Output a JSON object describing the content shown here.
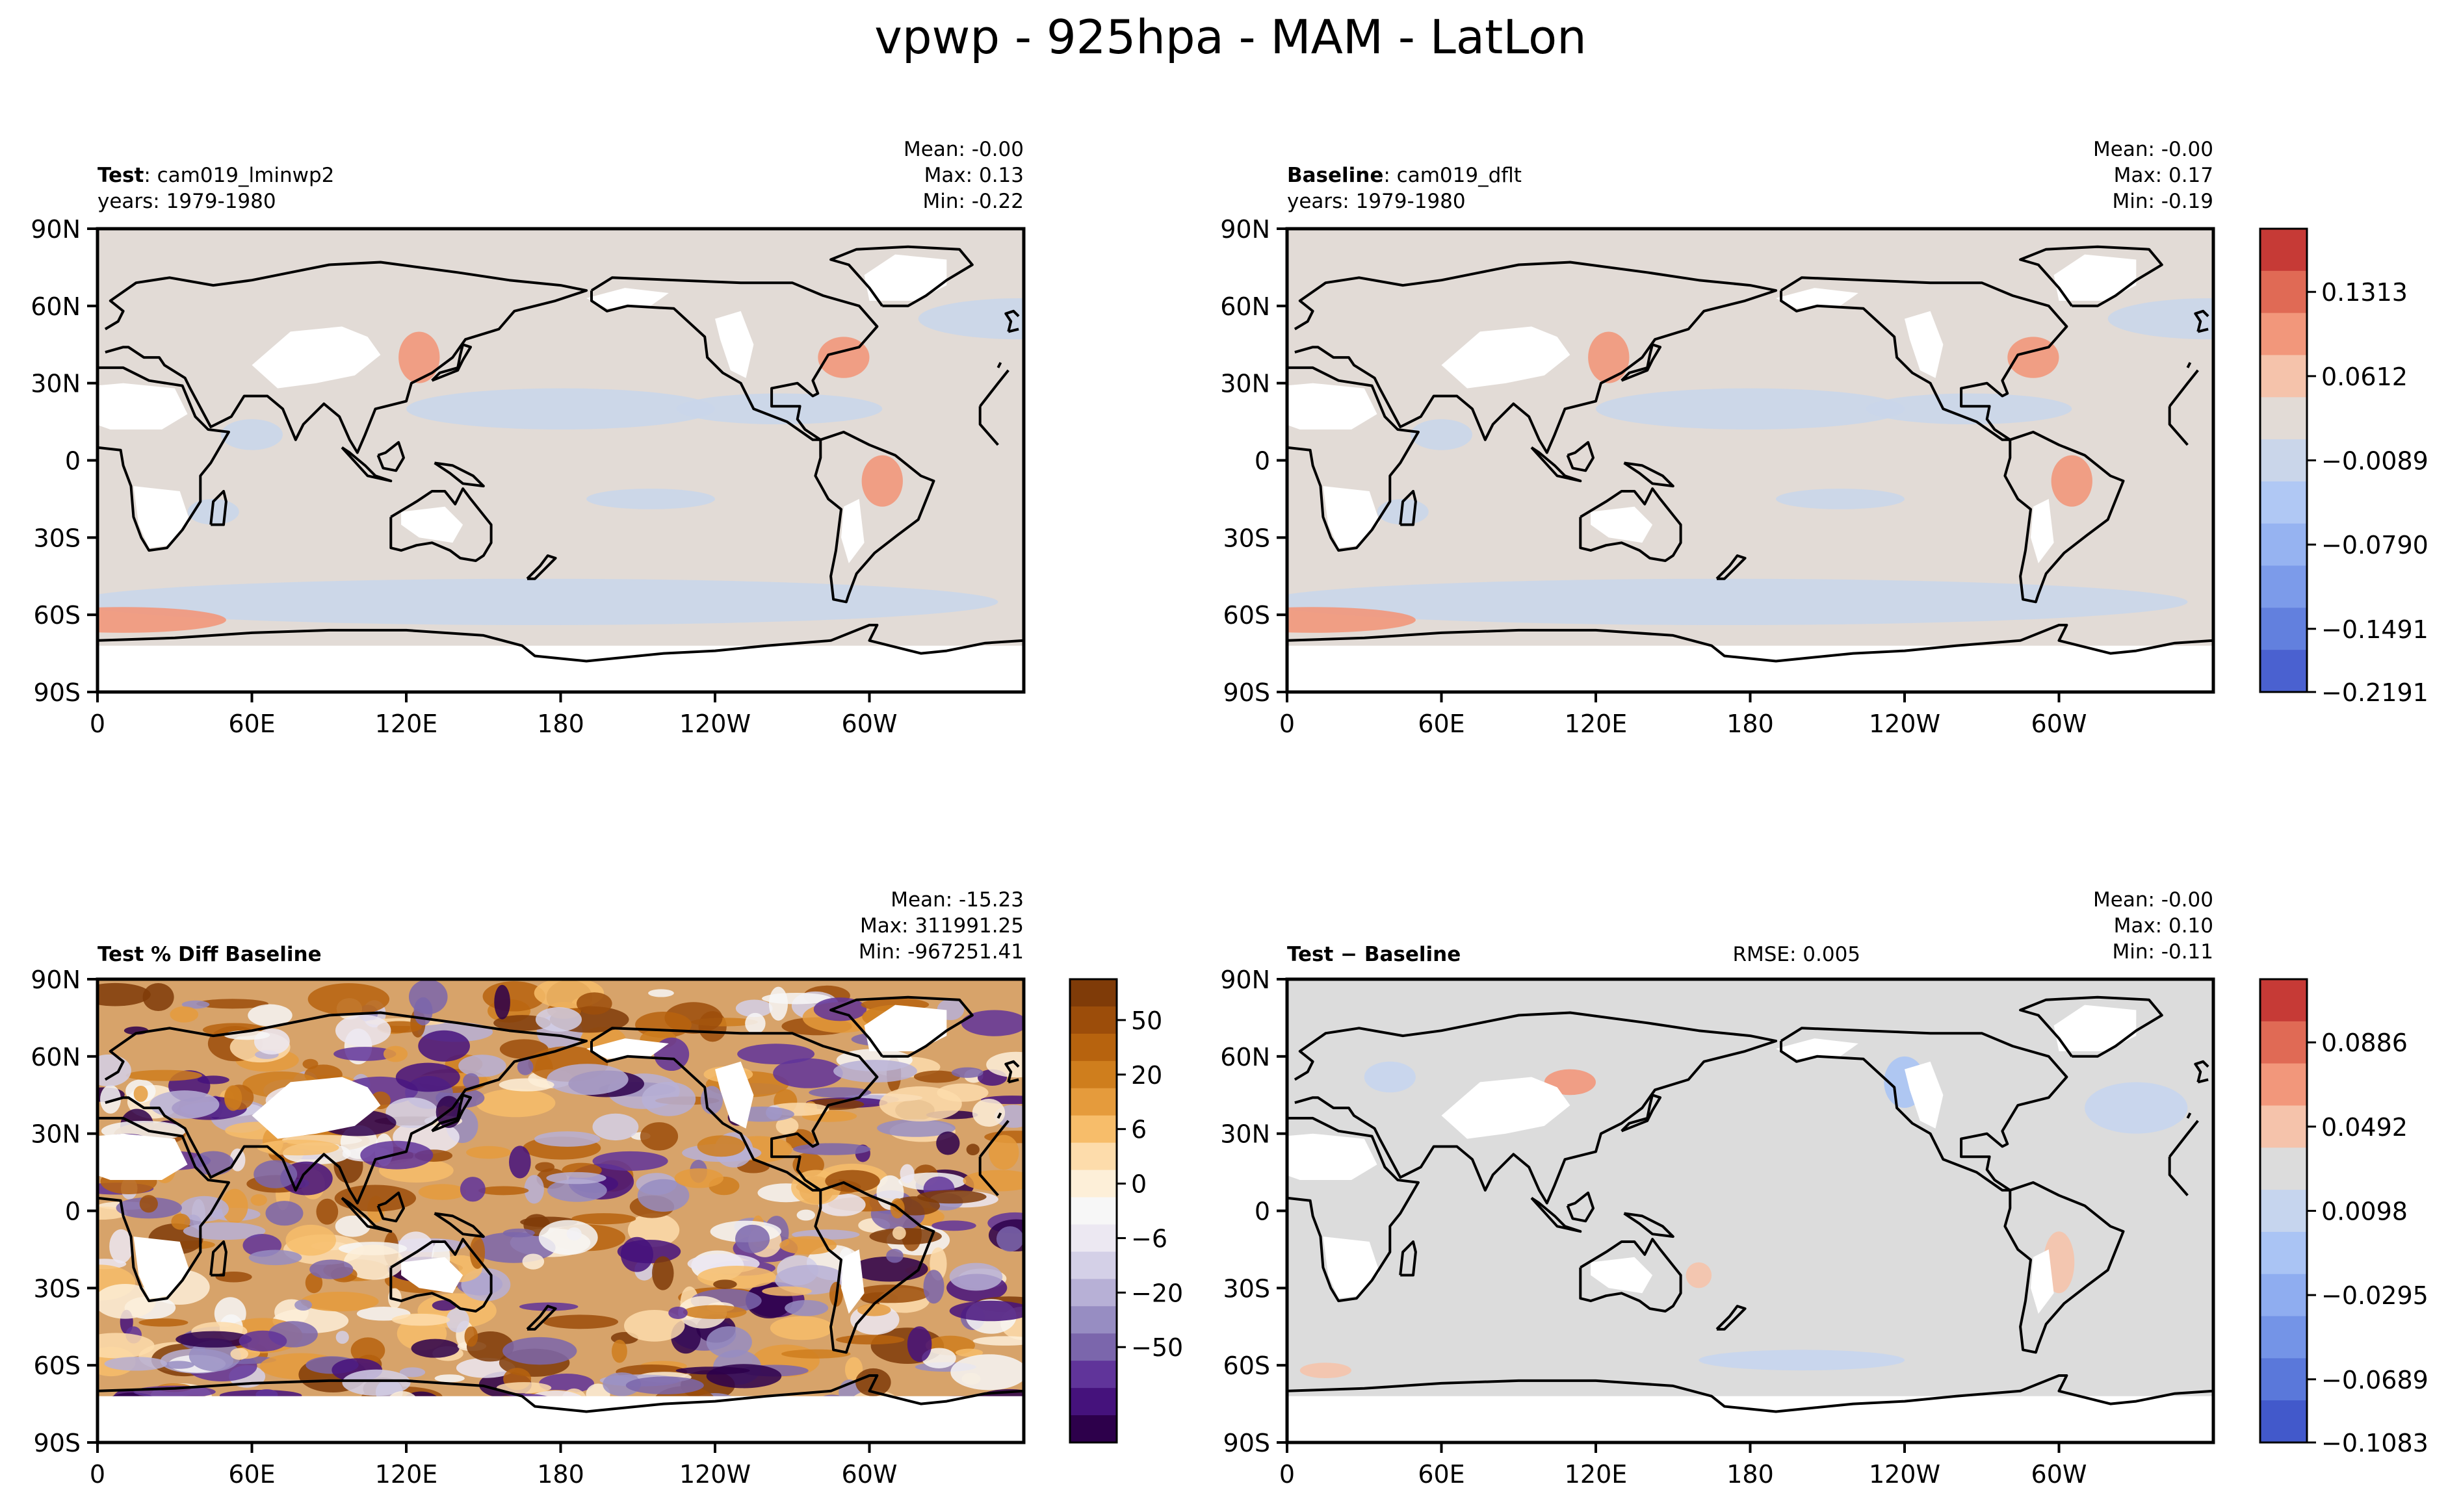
{
  "title": "vpwp - 925hpa - MAM - LatLon",
  "xticks": [
    "0",
    "60E",
    "120E",
    "180",
    "120W",
    "60W"
  ],
  "yticks": [
    "90N",
    "60N",
    "30N",
    "0",
    "30S",
    "60S",
    "90S"
  ],
  "chart_data": [
    {
      "id": "test",
      "type": "heatmap",
      "label_bold": "Test",
      "label_rest": ": cam019_lminwp2",
      "years": "years: 1979-1980",
      "stats": [
        "Mean: -0.00",
        "Max:  0.13",
        "Min: -0.22"
      ],
      "rmse": "",
      "xlim": [
        0,
        360
      ],
      "ylim": [
        -90,
        90
      ],
      "colorbar": "shared-top",
      "background": "#e2dbd6",
      "mean": -0.0,
      "max": 0.13,
      "min": -0.22
    },
    {
      "id": "baseline",
      "type": "heatmap",
      "label_bold": "Baseline",
      "label_rest": ": cam019_dflt",
      "years": "years: 1979-1980",
      "stats": [
        "Mean: -0.00",
        "Max:  0.17",
        "Min: -0.19"
      ],
      "rmse": "",
      "xlim": [
        0,
        360
      ],
      "ylim": [
        -90,
        90
      ],
      "colorbar": "shared-top",
      "background": "#e2dbd6",
      "mean": -0.0,
      "max": 0.17,
      "min": -0.19
    },
    {
      "id": "pctdiff",
      "type": "heatmap",
      "label_bold": "Test % Diff Baseline",
      "label_rest": "",
      "years": "",
      "stats": [
        "Mean: -15.23",
        "Max: 311991.25",
        "Min: -967251.41"
      ],
      "rmse": "",
      "xlim": [
        0,
        360
      ],
      "ylim": [
        -90,
        90
      ],
      "colorbar": "pctdiff",
      "background": "#d7a36a",
      "mean": -15.23,
      "max": 311991.25,
      "min": -967251.41
    },
    {
      "id": "diff",
      "type": "heatmap",
      "label_bold": "Test − Baseline",
      "label_rest": "",
      "years": "",
      "stats": [
        "Mean: -0.00",
        "Max:  0.10",
        "Min: -0.11"
      ],
      "rmse": "RMSE: 0.005",
      "xlim": [
        0,
        360
      ],
      "ylim": [
        -90,
        90
      ],
      "colorbar": "diff",
      "background": "#dcdcdc",
      "mean": -0.0,
      "max": 0.1,
      "min": -0.11
    }
  ],
  "colorbars": {
    "top": {
      "ticks": [
        "0.1313",
        "0.0612",
        "−0.0089",
        "−0.0790",
        "−0.1491",
        "−0.2191"
      ],
      "colors": [
        "#c63a36",
        "#e06a55",
        "#f2977b",
        "#f5c3ab",
        "#e2dbd6",
        "#cad6ea",
        "#b0c8f4",
        "#96b3f1",
        "#7c9bea",
        "#6280de",
        "#4a61d0"
      ]
    },
    "pctdiff": {
      "ticks": [
        "50",
        "20",
        "6",
        "0",
        "−6",
        "−20",
        "−50"
      ],
      "colors": [
        "#7f3b08",
        "#9c4d0a",
        "#b7630e",
        "#cf7e1d",
        "#e59b3c",
        "#f7bd6a",
        "#fddcab",
        "#fdefd8",
        "#f7f7f7",
        "#ece8f2",
        "#d4d0e7",
        "#b7b0d6",
        "#978dc2",
        "#7b66ac",
        "#60349a",
        "#45127c",
        "#2d004b"
      ]
    },
    "diff": {
      "ticks": [
        "0.0886",
        "0.0492",
        "0.0098",
        "−0.0295",
        "−0.0689",
        "−0.1083"
      ],
      "colors": [
        "#c63a36",
        "#e06a55",
        "#f2977b",
        "#f5c3ab",
        "#dcdcdc",
        "#c6d5ee",
        "#aac4f4",
        "#8fadf0",
        "#7494e7",
        "#5a78da",
        "#4259cb"
      ]
    }
  }
}
